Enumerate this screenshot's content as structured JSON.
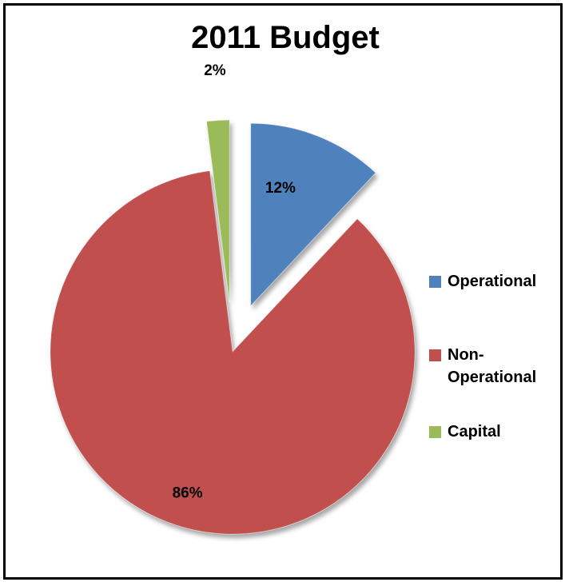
{
  "chart_data": {
    "type": "pie",
    "title": "2011 Budget",
    "slices": [
      {
        "name": "Operational",
        "value": 12,
        "label": "12%",
        "color": "#4f81bd",
        "exploded": true
      },
      {
        "name": "Non-\nOperational",
        "value": 86,
        "label": "86%",
        "color": "#c0504d",
        "exploded": false
      },
      {
        "name": "Capital",
        "value": 2,
        "label": "2%",
        "color": "#9bbb59",
        "exploded": true
      }
    ],
    "legend_position": "right",
    "start_angle": "top, clockwise"
  }
}
